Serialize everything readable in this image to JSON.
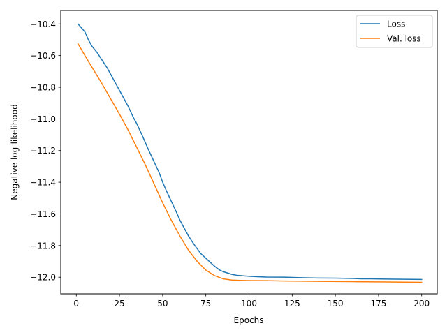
{
  "chart_data": {
    "type": "line",
    "title": "",
    "xlabel": "Epochs",
    "ylabel": "Negative log-likelihood",
    "xlim": [
      -9,
      209
    ],
    "ylim": [
      -12.105,
      -10.315
    ],
    "grid": false,
    "legend_position": "upper right",
    "x_ticks": [
      0,
      25,
      50,
      75,
      100,
      125,
      150,
      175,
      200
    ],
    "x_tick_labels": [
      "0",
      "25",
      "50",
      "75",
      "100",
      "125",
      "150",
      "175",
      "200"
    ],
    "y_ticks": [
      -10.4,
      -10.6,
      -10.8,
      -11.0,
      -11.2,
      -11.4,
      -11.6,
      -11.8,
      -12.0
    ],
    "y_tick_labels": [
      "−10.4",
      "−10.6",
      "−10.8",
      "−11.0",
      "−11.2",
      "−11.4",
      "−11.6",
      "−11.8",
      "−12.0"
    ],
    "series": [
      {
        "name": "Loss",
        "color": "#1f77b4",
        "x": [
          1,
          3,
          5,
          7,
          9,
          12,
          15,
          18,
          20,
          22,
          25,
          28,
          30,
          33,
          35,
          38,
          40,
          42,
          45,
          48,
          50,
          52,
          55,
          58,
          60,
          62,
          65,
          68,
          70,
          72,
          75,
          78,
          80,
          83,
          85,
          88,
          90,
          93,
          95,
          100,
          105,
          110,
          120,
          130,
          140,
          150,
          160,
          165,
          170,
          180,
          190,
          200
        ],
        "values": [
          -10.4,
          -10.425,
          -10.45,
          -10.5,
          -10.54,
          -10.58,
          -10.63,
          -10.68,
          -10.72,
          -10.76,
          -10.82,
          -10.88,
          -10.92,
          -10.99,
          -11.03,
          -11.1,
          -11.15,
          -11.2,
          -11.27,
          -11.34,
          -11.4,
          -11.45,
          -11.52,
          -11.59,
          -11.64,
          -11.68,
          -11.74,
          -11.79,
          -11.82,
          -11.85,
          -11.88,
          -11.91,
          -11.93,
          -11.955,
          -11.965,
          -11.975,
          -11.982,
          -11.988,
          -11.99,
          -11.994,
          -11.997,
          -11.999,
          -12.0,
          -12.003,
          -12.005,
          -12.006,
          -12.008,
          -12.01,
          -12.01,
          -12.012,
          -12.013,
          -12.014
        ]
      },
      {
        "name": "Val. loss",
        "color": "#ff7f0e",
        "x": [
          1,
          5,
          10,
          15,
          20,
          25,
          30,
          35,
          40,
          45,
          50,
          55,
          60,
          65,
          70,
          75,
          80,
          85,
          90,
          95,
          100,
          110,
          120,
          140,
          160,
          180,
          200
        ],
        "values": [
          -10.525,
          -10.6,
          -10.69,
          -10.78,
          -10.875,
          -10.97,
          -11.07,
          -11.18,
          -11.29,
          -11.41,
          -11.53,
          -11.64,
          -11.74,
          -11.83,
          -11.9,
          -11.955,
          -11.99,
          -12.01,
          -12.018,
          -12.02,
          -12.021,
          -12.022,
          -12.024,
          -12.026,
          -12.028,
          -12.03,
          -12.032
        ]
      }
    ]
  }
}
